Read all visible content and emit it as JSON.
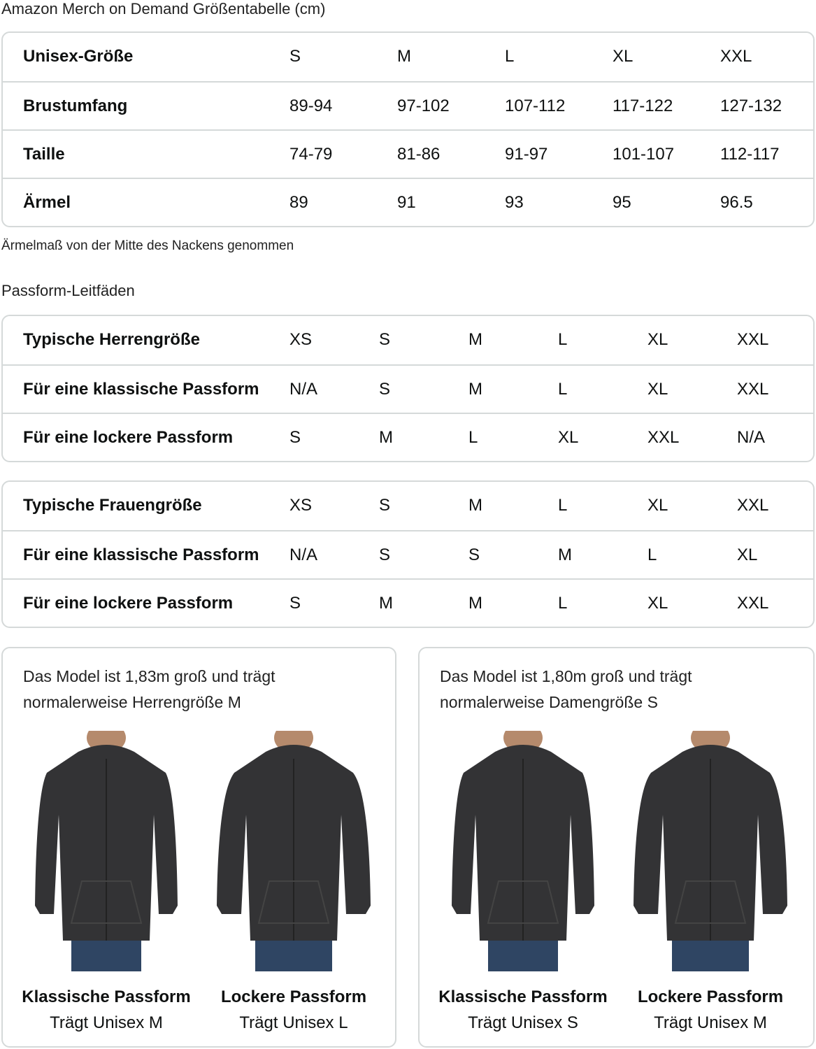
{
  "title": "Amazon Merch on Demand Größentabelle (cm)",
  "unisex_table": {
    "rows": [
      {
        "label": "Unisex-Größe",
        "values": [
          "S",
          "M",
          "L",
          "XL",
          "XXL"
        ]
      },
      {
        "label": "Brustumfang",
        "values": [
          "89-94",
          "97-102",
          "107-112",
          "117-122",
          "127-132"
        ]
      },
      {
        "label": "Taille",
        "values": [
          "74-79",
          "81-86",
          "91-97",
          "101-107",
          "112-117"
        ]
      },
      {
        "label": "Ärmel",
        "values": [
          "89",
          "91",
          "93",
          "95",
          "96.5"
        ]
      }
    ]
  },
  "note": "Ärmelmaß von der Mitte des Nackens genommen",
  "fit_title": "Passform-Leitfäden",
  "men_table": {
    "rows": [
      {
        "label": "Typische Herrengröße",
        "values": [
          "XS",
          "S",
          "M",
          "L",
          "XL",
          "XXL"
        ]
      },
      {
        "label": "Für eine klassische Passform",
        "values": [
          "N/A",
          "S",
          "M",
          "L",
          "XL",
          "XXL"
        ]
      },
      {
        "label": "Für eine lockere Passform",
        "values": [
          "S",
          "M",
          "L",
          "XL",
          "XXL",
          "N/A"
        ]
      }
    ]
  },
  "women_table": {
    "rows": [
      {
        "label": "Typische Frauengröße",
        "values": [
          "XS",
          "S",
          "M",
          "L",
          "XL",
          "XXL"
        ]
      },
      {
        "label": "Für eine klassische Passform",
        "values": [
          "N/A",
          "S",
          "S",
          "M",
          "L",
          "XL"
        ]
      },
      {
        "label": "Für eine lockere Passform",
        "values": [
          "S",
          "M",
          "M",
          "L",
          "XL",
          "XXL"
        ]
      }
    ]
  },
  "cards": [
    {
      "desc1": "Das Model ist 1,83m groß und trägt",
      "desc2": "normalerweise Herrengröße M",
      "figures": [
        {
          "title": "Klassische Passform",
          "sub": "Trägt Unisex M"
        },
        {
          "title": "Lockere Passform",
          "sub": "Trägt Unisex L"
        }
      ]
    },
    {
      "desc1": "Das Model ist 1,80m groß und trägt",
      "desc2": "normalerweise Damengröße S",
      "figures": [
        {
          "title": "Klassische Passform",
          "sub": "Trägt Unisex S"
        },
        {
          "title": "Lockere Passform",
          "sub": "Trägt Unisex M"
        }
      ]
    }
  ],
  "colors": {
    "border": "#d5d9d9",
    "hoodie": "#333335",
    "jeans": "#2f4563"
  }
}
